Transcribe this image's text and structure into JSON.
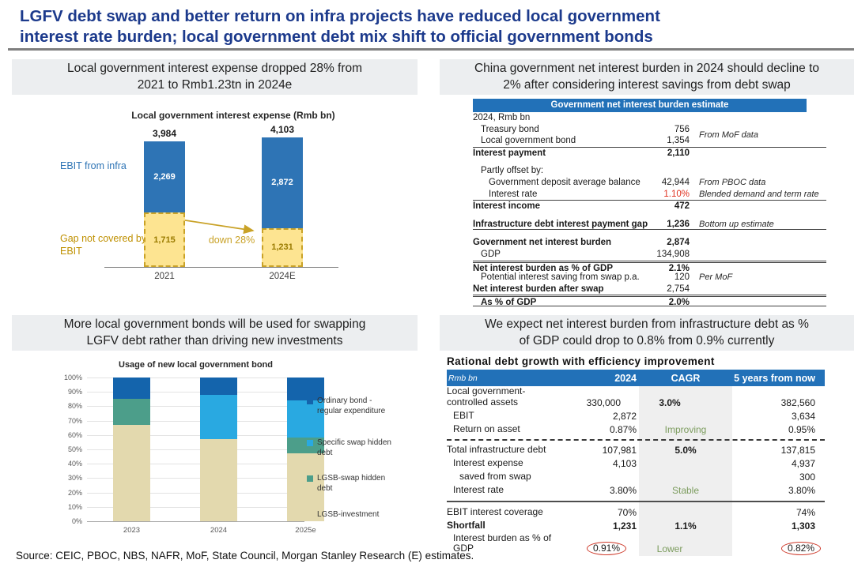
{
  "header": {
    "title_line1": "LGFV debt swap and better return on infra projects have reduced local government",
    "title_line2": "interest rate burden; local government debt mix shift to official government bonds"
  },
  "panels": {
    "top_left": {
      "subtitle": "Local government interest expense dropped 28% from 2021 to Rmb1.23tn in 2024e"
    },
    "top_right": {
      "subtitle": "China government net interest burden in 2024 should decline to 2% after considering interest savings from debt swap"
    },
    "bottom_left": {
      "subtitle": "More local government bonds will be used for swapping LGFV debt rather than driving new investments"
    },
    "bottom_right": {
      "subtitle": "We expect net interest burden from infrastructure debt as % of GDP could drop to 0.8% from 0.9% currently"
    }
  },
  "chart_data": [
    {
      "type": "bar",
      "title": "Local government interest expense (Rmb bn)",
      "categories": [
        "2021",
        "2024E"
      ],
      "series": [
        {
          "name": "Gap not covered by EBIT",
          "values": [
            1715,
            1231
          ],
          "color": "#FDE491",
          "border": "#C9A227",
          "label_color": "#9A7B00"
        },
        {
          "name": "EBIT from infra",
          "values": [
            2269,
            2872
          ],
          "color": "#2E74B5",
          "label_color": "#ffffff"
        }
      ],
      "totals": [
        3984,
        4103
      ],
      "annotation": "down 28%",
      "left_labels": [
        {
          "text": "EBIT from infra",
          "color": "#2E74B5"
        },
        {
          "text": "Gap not covered by EBIT",
          "color": "#BF9000"
        }
      ],
      "ylabel": "",
      "xlabel": "",
      "grid": false
    },
    {
      "type": "bar",
      "subtype": "stacked-100",
      "title": "Usage of new local government bond",
      "categories": [
        "2023",
        "2024",
        "2025e"
      ],
      "series": [
        {
          "name": "LGSB-investment",
          "color": "#E3D9AE",
          "values": [
            67,
            57,
            47
          ]
        },
        {
          "name": "LGSB-swap hidden debt",
          "color": "#4C9E8A",
          "values": [
            18,
            0,
            11
          ]
        },
        {
          "name": "Specific swap hidden debt",
          "color": "#29A9E1",
          "values": [
            0,
            31,
            26
          ]
        },
        {
          "name": "Ordinary bond - regular expenditure",
          "color": "#1464AC",
          "values": [
            15,
            12,
            16
          ]
        }
      ],
      "legend": [
        {
          "label": "Ordinary bond - regular expenditure",
          "color": "#1464AC"
        },
        {
          "label": "Specific swap hidden debt",
          "color": "#29A9E1"
        },
        {
          "label": "LGSB-swap hidden debt",
          "color": "#4C9E8A"
        },
        {
          "label": "LGSB-investment",
          "color": "#E3D9AE"
        }
      ],
      "y_ticks": [
        "100%",
        "90%",
        "80%",
        "70%",
        "60%",
        "50%",
        "40%",
        "30%",
        "20%",
        "10%",
        "0%"
      ],
      "ylim": [
        0,
        100
      ],
      "grid": true,
      "legend_position": "right"
    }
  ],
  "tables": {
    "net_interest": {
      "header": "Government net interest burden estimate",
      "rows": [
        {
          "label": "2024, Rmb bn"
        },
        {
          "label": "Treasury bond",
          "indent": 1,
          "value": "756",
          "note": "From MoF data",
          "note_mid": true
        },
        {
          "label": "Local government bond",
          "indent": 1,
          "value": "1,354"
        },
        {
          "label": "Interest payment",
          "bold": true,
          "value": "2,110",
          "value_bold": true,
          "border_top": true
        },
        {
          "spacer": true
        },
        {
          "label": "Partly offset by:",
          "indent": 1
        },
        {
          "label": "Government deposit average balance",
          "indent": 2,
          "value": "42,944",
          "note": "From PBOC data"
        },
        {
          "label": "Interest rate",
          "indent": 2,
          "value": "1.10%",
          "value_red": true,
          "note": "Blended demand and term rate"
        },
        {
          "label": "Interest income",
          "bold": true,
          "value": "472",
          "value_bold": true,
          "border_top": true
        },
        {
          "spacer": true
        },
        {
          "label": "Infrastructure debt interest payment gap",
          "bold": true,
          "value": "1,236",
          "value_bold": true,
          "note": "Bottom up estimate",
          "border_bottom": true
        },
        {
          "spacer": true
        },
        {
          "label": "Government net interest burden",
          "bold": true,
          "value": "2,874",
          "value_bold": true
        },
        {
          "label": "GDP",
          "indent": 1,
          "value": "134,908"
        },
        {
          "label": "Net interest burden as % of GDP",
          "bold": true,
          "value": "2.1%",
          "value_bold": true,
          "border_top_double": true
        },
        {
          "label": "Potential interest saving from swap p.a.",
          "indent": 1,
          "value": "120",
          "note": "Per MoF"
        },
        {
          "label": "Net interest burden after swap",
          "bold": true,
          "value": "2,754"
        },
        {
          "label": "As % of GDP",
          "bold": true,
          "indent": 1,
          "value": "2.0%",
          "value_bold": true,
          "border_top_double": true,
          "border_bottom": true
        }
      ]
    },
    "debt_growth": {
      "title": "Rational debt growth with efficiency improvement",
      "columns": [
        "Rmb bn",
        "2024",
        "CAGR",
        "5 years from now"
      ],
      "rows": [
        {
          "label": "Local government-controlled assets",
          "two_line": true,
          "c1": "330,000",
          "c2": "3.0%",
          "c2_bold": true,
          "c3": "382,560"
        },
        {
          "label": "EBIT",
          "indent": 1,
          "c1": "2,872",
          "c3": "3,634"
        },
        {
          "label": "Return on asset",
          "indent": 1,
          "c1": "0.87%",
          "c2": "Improving",
          "c2_green": true,
          "c3": "0.95%"
        },
        {
          "divider": "dashed"
        },
        {
          "label": "Total infrastructure debt",
          "c1": "107,981",
          "c2": "5.0%",
          "c2_bold": true,
          "c3": "137,815"
        },
        {
          "label": "Interest expense",
          "indent": 1,
          "c1": "4,103",
          "c3": "4,937"
        },
        {
          "label": "saved from swap",
          "indent": 2,
          "c3": "300"
        },
        {
          "label": "Interest rate",
          "indent": 1,
          "c1": "3.80%",
          "c2": "Stable",
          "c2_green": true,
          "c3": "3.80%"
        },
        {
          "divider": "thick"
        },
        {
          "label": "EBIT interest coverage",
          "c1": "70%",
          "c3": "74%"
        },
        {
          "label": "Shortfall",
          "bold": true,
          "c1": "1,231",
          "c1_bold": true,
          "c2": "1.1%",
          "c2_bold": true,
          "c3": "1,303",
          "c3_bold": true
        },
        {
          "label": "Interest burden as % of GDP",
          "indent": 1,
          "two_line": true,
          "c1": "0.91%",
          "c1_circle": true,
          "c2": "Lower",
          "c2_green": true,
          "c3": "0.82%",
          "c3_circle": true
        }
      ]
    }
  },
  "source": "Source: CEIC, PBOC, NBS, NAFR, MoF, State Council, Morgan Stanley Research (E) estimates.",
  "colors": {
    "title_navy": "#1C3A8C",
    "rule_gray": "#7F7F7F",
    "box_gray": "#ECEEF0",
    "table_header_blue": "#2271B8",
    "bar_blue": "#2E74B5",
    "bar_yellow": "#FDE491",
    "gold": "#C9A227",
    "gold_text": "#BF9000",
    "red_value": "#E0301E",
    "circle_red": "#CE3A2B",
    "green_note": "#7C9C5E",
    "stack_dark_blue": "#1464AC",
    "stack_light_blue": "#29A9E1",
    "stack_teal": "#4C9E8A",
    "stack_beige": "#E3D9AE"
  }
}
